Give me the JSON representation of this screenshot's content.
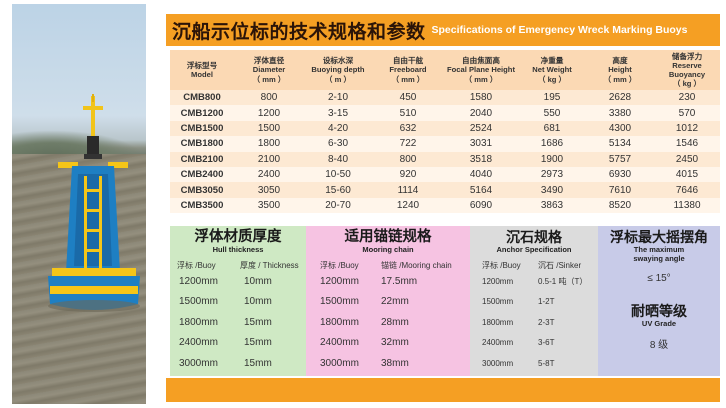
{
  "banner": {
    "title_cn": "沉船示位标的技术规格和参数",
    "title_en": "Specifications of Emergency Wreck Marking Buoys"
  },
  "spec_table": {
    "headers": [
      {
        "cn": "浮标型号",
        "en": "Model",
        "unit": ""
      },
      {
        "cn": "浮体直径",
        "en": "Diameter",
        "unit": "（ mm ）"
      },
      {
        "cn": "设标水深",
        "en": "Buoying depth",
        "unit": "（ m ）"
      },
      {
        "cn": "自由干舷",
        "en": "Freeboard",
        "unit": "（ mm ）"
      },
      {
        "cn": "自由焦面高",
        "en": "Focal Plane Height",
        "unit": "（ mm ）"
      },
      {
        "cn": "净重量",
        "en": "Net Weight",
        "unit": "（ kg ）"
      },
      {
        "cn": "高度",
        "en": "Height",
        "unit": "（ mm ）"
      },
      {
        "cn": "储备浮力",
        "en": "Reserve Buoyancy",
        "unit": "（ kg ）"
      }
    ],
    "rows": [
      [
        "CMB800",
        "800",
        "2-10",
        "450",
        "1580",
        "195",
        "2628",
        "230"
      ],
      [
        "CMB1200",
        "1200",
        "3-15",
        "510",
        "2040",
        "550",
        "3380",
        "570"
      ],
      [
        "CMB1500",
        "1500",
        "4-20",
        "632",
        "2524",
        "681",
        "4300",
        "1012"
      ],
      [
        "CMB1800",
        "1800",
        "6-30",
        "722",
        "3031",
        "1686",
        "5134",
        "1546"
      ],
      [
        "CMB2100",
        "2100",
        "8-40",
        "800",
        "3518",
        "1900",
        "5757",
        "2450"
      ],
      [
        "CMB2400",
        "2400",
        "10-50",
        "920",
        "4040",
        "2973",
        "6930",
        "4015"
      ],
      [
        "CMB3050",
        "3050",
        "15-60",
        "1114",
        "5164",
        "3490",
        "7610",
        "7646"
      ],
      [
        "CMB3500",
        "3500",
        "20-70",
        "1240",
        "6090",
        "3863",
        "8520",
        "11380"
      ]
    ]
  },
  "hull": {
    "title": "浮体材质厚度",
    "subtitle": "Hull thickness",
    "col1": "浮标 /Buoy",
    "col2": "厚度 / Thickness",
    "rows": [
      [
        "1200mm",
        "10mm"
      ],
      [
        "1500mm",
        "10mm"
      ],
      [
        "1800mm",
        "15mm"
      ],
      [
        "2400mm",
        "15mm"
      ],
      [
        "3000mm",
        "15mm"
      ]
    ]
  },
  "mooring": {
    "title": "适用锚链规格",
    "subtitle": "Mooring chain",
    "col1": "浮标 /Buoy",
    "col2": "锚链 /Mooring chain",
    "rows": [
      [
        "1200mm",
        "17.5mm"
      ],
      [
        "1500mm",
        "22mm"
      ],
      [
        "1800mm",
        "28mm"
      ],
      [
        "2400mm",
        "32mm"
      ],
      [
        "3000mm",
        "38mm"
      ]
    ]
  },
  "anchor": {
    "title": "沉石规格",
    "subtitle": "Anchor Specification",
    "col1": "浮标 /Buoy",
    "col2": "沉石 /Sinker",
    "rows": [
      [
        "1200mm",
        "0.5-1 吨（T）"
      ],
      [
        "1500mm",
        "1-2T"
      ],
      [
        "1800mm",
        "2-3T"
      ],
      [
        "2400mm",
        "3-6T"
      ],
      [
        "3000mm",
        "5-8T"
      ]
    ]
  },
  "swaying": {
    "title": "浮标最大摇摆角",
    "subtitle_line1": "The maximum",
    "subtitle_line2": "swaying angle",
    "value": "≤ 15°"
  },
  "uv": {
    "title": "耐晒等级",
    "subtitle": "UV Grade",
    "value": "8 级"
  },
  "photo": {
    "subject": "buoy-photo",
    "colors": {
      "body": "#1e7fc3",
      "base": "#f5c518",
      "sky": "#cfdeea",
      "sea": "#8a8472"
    }
  },
  "colors": {
    "banner": "#f59f23",
    "header": "#fbd9b4",
    "row_alt": "#fde9d3"
  }
}
